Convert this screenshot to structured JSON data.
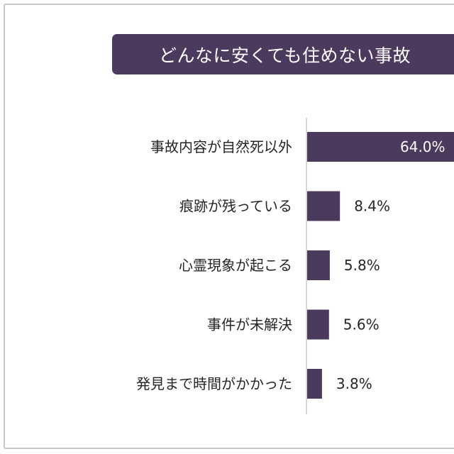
{
  "chart_data": {
    "type": "bar",
    "orientation": "horizontal",
    "title": "どんなに安くても住めない事故",
    "categories": [
      "事故内容が自然死以外",
      "痕跡が残っている",
      "心霊現象が起こる",
      "事件が未解決",
      "発見まで時間がかかった"
    ],
    "values": [
      64.0,
      8.4,
      5.8,
      5.6,
      3.8
    ],
    "value_labels": [
      "64.0%",
      "8.4%",
      "5.8%",
      "5.6%",
      "3.8%"
    ],
    "xlim": [
      0,
      100
    ],
    "grid": false,
    "legend": "none",
    "bar_color": "#4b3a5e",
    "title_bg_color": "#4b3a5e"
  }
}
